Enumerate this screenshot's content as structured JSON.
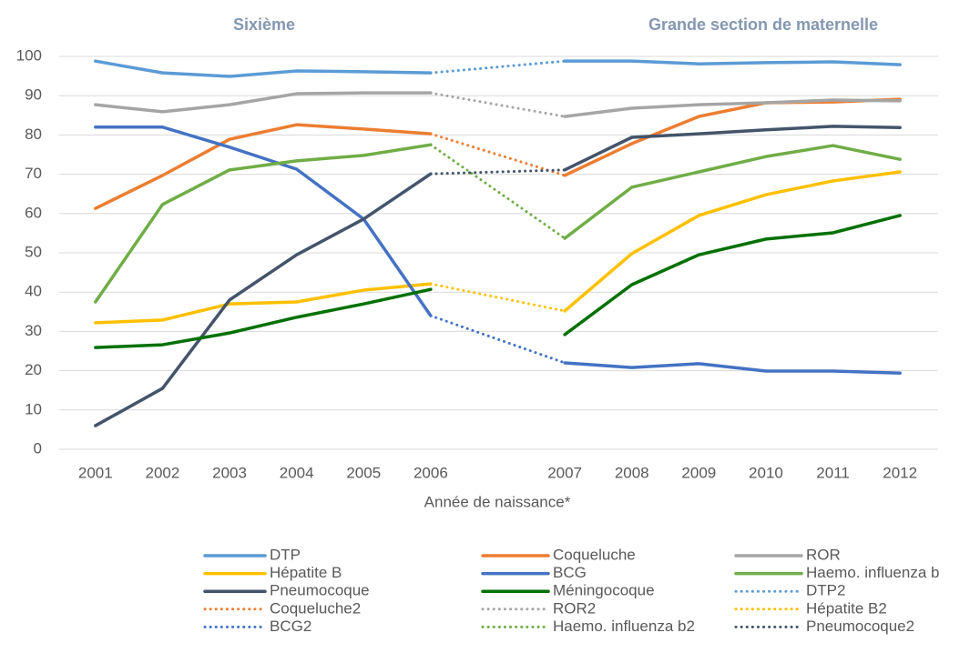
{
  "chart_data": {
    "type": "line",
    "annotations": [
      "Sixième",
      "Grande section de maternelle"
    ],
    "x_label": "Année de naissance*",
    "categories": [
      "2001",
      "2002",
      "2003",
      "2004",
      "2005",
      "2006",
      null,
      "2007",
      "2008",
      "2009",
      "2010",
      "2011",
      "2012"
    ],
    "ylim": [
      0,
      100
    ],
    "yticks": [
      0,
      10,
      20,
      30,
      40,
      50,
      60,
      70,
      80,
      90,
      100
    ],
    "grid": true,
    "legend": "bottom",
    "series": [
      {
        "name": "DTP",
        "color": "#5b9bd5",
        "line_style": "solid",
        "values": [
          98.8,
          95.8,
          94.9,
          96.3,
          96.1,
          95.8,
          null,
          98.8,
          98.8,
          98.1,
          98.4,
          98.6,
          97.9
        ]
      },
      {
        "name": "Coqueluche",
        "color": "#ed7d31",
        "line_style": "solid",
        "values": [
          61.3,
          69.7,
          78.9,
          82.6,
          81.5,
          80.3,
          null,
          69.7,
          77.8,
          84.7,
          88.2,
          88.4,
          89.1
        ]
      },
      {
        "name": "ROR",
        "color": "#a5a5a5",
        "line_style": "solid",
        "values": [
          87.7,
          85.9,
          87.7,
          90.5,
          90.7,
          90.7,
          null,
          84.7,
          86.8,
          87.7,
          88.2,
          88.9,
          88.7
        ]
      },
      {
        "name": "Hépatite B",
        "color": "#ffc000",
        "line_style": "solid",
        "values": [
          32.2,
          32.9,
          37.0,
          37.5,
          40.5,
          42.1,
          null,
          35.2,
          49.8,
          59.5,
          64.8,
          68.3,
          70.6
        ]
      },
      {
        "name": "BCG",
        "color": "#4472c4",
        "line_style": "solid",
        "values": [
          82.0,
          82.0,
          76.9,
          71.3,
          58.6,
          34.0,
          null,
          22.0,
          20.8,
          21.8,
          19.9,
          19.9,
          19.4
        ]
      },
      {
        "name": "Haemo. influenza b",
        "color": "#70ad47",
        "line_style": "solid",
        "values": [
          37.5,
          62.3,
          71.1,
          73.4,
          74.8,
          77.5,
          null,
          53.7,
          66.7,
          70.6,
          74.5,
          77.3,
          73.8
        ]
      },
      {
        "name": "Pneumocoque",
        "color": "#44546a",
        "line_style": "solid",
        "values": [
          6.0,
          15.5,
          38.0,
          49.5,
          58.6,
          70.1,
          null,
          71.1,
          79.4,
          80.3,
          81.3,
          82.2,
          81.9
        ]
      },
      {
        "name": "Méningocoque",
        "color": "#007000",
        "line_style": "solid",
        "values": [
          25.9,
          26.6,
          29.6,
          33.6,
          37.0,
          40.7,
          null,
          29.2,
          41.9,
          49.5,
          53.5,
          55.1,
          59.5
        ]
      },
      {
        "name": "DTP2",
        "color": "#5b9bd5",
        "line_style": "dotted",
        "span_gaps": true,
        "values": [
          null,
          null,
          null,
          null,
          null,
          95.8,
          null,
          98.8,
          null,
          null,
          null,
          null,
          null
        ]
      },
      {
        "name": "Coqueluche2",
        "color": "#ed7d31",
        "line_style": "dotted",
        "span_gaps": true,
        "values": [
          null,
          null,
          null,
          null,
          null,
          80.3,
          null,
          69.7,
          null,
          null,
          null,
          null,
          null
        ]
      },
      {
        "name": "ROR2",
        "color": "#a5a5a5",
        "line_style": "dotted",
        "span_gaps": true,
        "values": [
          null,
          null,
          null,
          null,
          null,
          90.7,
          null,
          84.7,
          null,
          null,
          null,
          null,
          null
        ]
      },
      {
        "name": "Hépatite B2",
        "color": "#ffc000",
        "line_style": "dotted",
        "span_gaps": true,
        "values": [
          null,
          null,
          null,
          null,
          null,
          42.1,
          null,
          35.2,
          null,
          null,
          null,
          null,
          null
        ]
      },
      {
        "name": "BCG2",
        "color": "#4472c4",
        "line_style": "dotted",
        "span_gaps": true,
        "values": [
          null,
          null,
          null,
          null,
          null,
          34.0,
          null,
          22.0,
          null,
          null,
          null,
          null,
          null
        ]
      },
      {
        "name": "Haemo. influenza b2",
        "color": "#70ad47",
        "line_style": "dotted",
        "span_gaps": true,
        "values": [
          null,
          null,
          null,
          null,
          null,
          77.5,
          null,
          53.7,
          null,
          null,
          null,
          null,
          null
        ]
      },
      {
        "name": "Pneumocoque2",
        "color": "#44546a",
        "line_style": "dotted",
        "span_gaps": true,
        "values": [
          null,
          null,
          null,
          null,
          null,
          70.1,
          null,
          71.1,
          null,
          null,
          null,
          null,
          null
        ]
      }
    ]
  }
}
